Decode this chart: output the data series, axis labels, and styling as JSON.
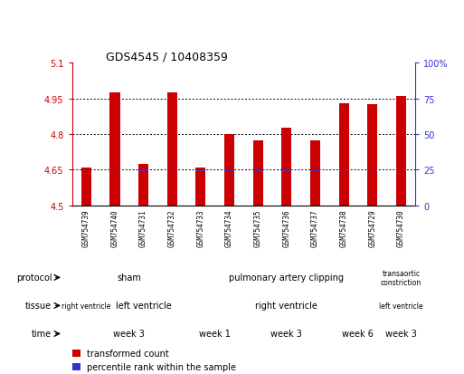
{
  "title": "GDS4545 / 10408359",
  "samples": [
    "GSM754739",
    "GSM754740",
    "GSM754731",
    "GSM754732",
    "GSM754733",
    "GSM754734",
    "GSM754735",
    "GSM754736",
    "GSM754737",
    "GSM754738",
    "GSM754729",
    "GSM754730"
  ],
  "bar_values": [
    4.66,
    4.975,
    4.675,
    4.975,
    4.66,
    4.8,
    4.775,
    4.825,
    4.775,
    4.93,
    4.925,
    4.96
  ],
  "bar_bottom": 4.5,
  "percentile_values": [
    4.635,
    4.65,
    4.645,
    4.65,
    4.645,
    4.645,
    4.645,
    4.645,
    4.645,
    4.65,
    4.65,
    4.65
  ],
  "ylim": [
    4.5,
    5.1
  ],
  "yticks_left": [
    4.5,
    4.65,
    4.8,
    4.95,
    5.1
  ],
  "ytick_labels_left": [
    "4.5",
    "4.65",
    "4.8",
    "4.95",
    "5.1"
  ],
  "yticks_right_pct": [
    0,
    25,
    50,
    75,
    100
  ],
  "ytick_labels_right": [
    "0",
    "25",
    "50",
    "75",
    "100%"
  ],
  "bar_color": "#cc0000",
  "percentile_color": "#3333cc",
  "grid_lines": [
    4.65,
    4.8,
    4.95
  ],
  "protocol_rows": [
    {
      "text": "sham",
      "start": 0,
      "end": 3,
      "color": "#bbffbb"
    },
    {
      "text": "pulmonary artery clipping",
      "start": 4,
      "end": 10,
      "color": "#77dd77"
    },
    {
      "text": "transaortic\nconstriction",
      "start": 11,
      "end": 11,
      "color": "#44bb44"
    }
  ],
  "tissue_rows": [
    {
      "text": "right ventricle",
      "start": 0,
      "end": 0,
      "color": "#ccccff"
    },
    {
      "text": "left ventricle",
      "start": 1,
      "end": 3,
      "color": "#aaaaee"
    },
    {
      "text": "right ventricle",
      "start": 4,
      "end": 10,
      "color": "#ccccff"
    },
    {
      "text": "left ventricle",
      "start": 11,
      "end": 11,
      "color": "#aaaaee"
    }
  ],
  "time_rows": [
    {
      "text": "week 3",
      "start": 0,
      "end": 3,
      "color": "#ffbbbb"
    },
    {
      "text": "week 1",
      "start": 4,
      "end": 5,
      "color": "#ffdddd"
    },
    {
      "text": "week 3",
      "start": 6,
      "end": 8,
      "color": "#ffdddd"
    },
    {
      "text": "week 6",
      "start": 9,
      "end": 10,
      "color": "#dd6666"
    },
    {
      "text": "week 3",
      "start": 11,
      "end": 11,
      "color": "#ffbbbb"
    }
  ],
  "legend_items": [
    {
      "label": "transformed count",
      "color": "#cc0000"
    },
    {
      "label": "percentile rank within the sample",
      "color": "#3333cc"
    }
  ],
  "figsize": [
    5.13,
    4.14
  ],
  "dpi": 100
}
